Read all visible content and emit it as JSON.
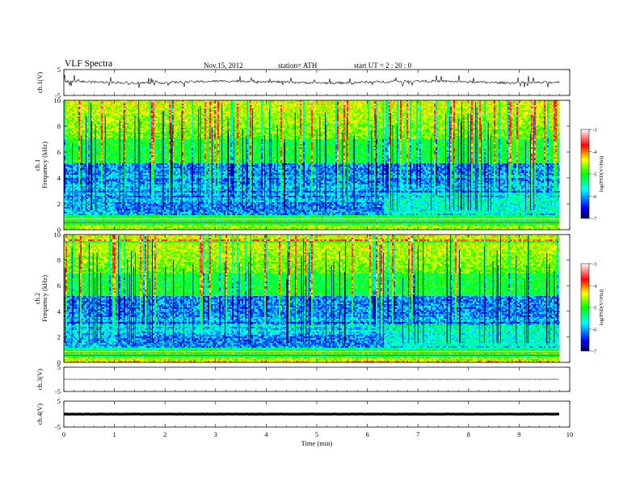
{
  "header": {
    "title": "VLF  Spectra",
    "date": "Nov.15,  2012",
    "station": "station= ATH",
    "start": "start  UT  =   2  : 20 : 0"
  },
  "chart_data": {
    "type": "heatmap",
    "time_axis": {
      "label": "Time  (min)",
      "range": [
        0,
        10
      ],
      "ticks": [
        "0",
        "1",
        "2",
        "3",
        "4",
        "5",
        "6",
        "7",
        "8",
        "9",
        "10"
      ],
      "data_extent_min": 9.8
    },
    "channels": [
      {
        "id": "ch1_waveform",
        "ylabel": "ch.1(V)",
        "ylim": [
          -5,
          5
        ],
        "yticks": [
          "5",
          "-5"
        ],
        "trace_level_V": 0.2,
        "color": "#000000"
      },
      {
        "id": "ch1_spectrogram",
        "ylabel_channel": "ch.1",
        "ylabel": "Frequency  (kHz)",
        "ylim": [
          0,
          10
        ],
        "yticks": [
          "0",
          "2",
          "4",
          "6",
          "8",
          "10"
        ],
        "colorbar": {
          "label": "log(PSD(V²/Hz))",
          "range": [
            -7,
            -3
          ],
          "ticks": [
            "-7",
            "-6",
            "-5",
            "-4",
            "-3"
          ]
        }
      },
      {
        "id": "ch2_spectrogram",
        "ylabel_channel": "ch.2",
        "ylabel": "Frequency  (kHz)",
        "ylim": [
          0,
          10
        ],
        "yticks": [
          "0",
          "2",
          "4",
          "6",
          "8",
          "10"
        ],
        "colorbar": {
          "label": "log(PSD(V²/Hz))",
          "range": [
            -7,
            -3
          ],
          "ticks": [
            "-7",
            "-6",
            "-5",
            "-4",
            "-3"
          ]
        }
      },
      {
        "id": "ch3_waveform",
        "ylabel": "ch.3(V)",
        "ylim": [
          -5,
          5
        ],
        "yticks": [
          "5",
          "-5"
        ],
        "trace_level_V": 0.0,
        "color": "#000000"
      },
      {
        "id": "ch4_waveform",
        "ylabel": "ch.4(V)",
        "ylim": [
          -5,
          5
        ],
        "yticks": [
          "5",
          "-5"
        ],
        "trace_level_V": 0.0,
        "color": "#000000"
      }
    ],
    "colormap": [
      "#000050",
      "#0000ff",
      "#00ffff",
      "#00ff00",
      "#ffff00",
      "#ff0000",
      "#ffffff"
    ],
    "spectral_features": [
      {
        "description_only": false,
        "time_min": 1.0,
        "freq_kHz": 2.1
      },
      {
        "time_min": 6.3,
        "freq_kHz": 2.5
      }
    ]
  }
}
